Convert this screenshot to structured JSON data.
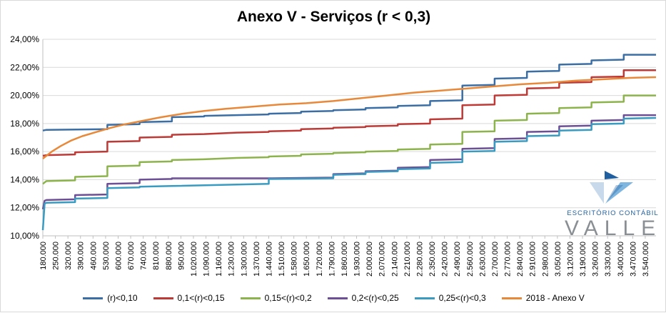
{
  "chart_data": {
    "type": "line",
    "title": "Anexo V - Serviços (r < 0,3)",
    "xlabel": "",
    "ylabel": "",
    "ylim": [
      10,
      24
    ],
    "y_ticks": [
      "10,00%",
      "12,00%",
      "14,00%",
      "16,00%",
      "18,00%",
      "20,00%",
      "22,00%",
      "24,00%"
    ],
    "y_tick_values": [
      10,
      12,
      14,
      16,
      18,
      20,
      22,
      24
    ],
    "x_ticks": [
      "180.000",
      "250.000",
      "320.000",
      "390.000",
      "460.000",
      "530.000",
      "600.000",
      "670.000",
      "740.000",
      "810.000",
      "880.000",
      "950.000",
      "1.020.000",
      "1.090.000",
      "1.160.000",
      "1.230.000",
      "1.300.000",
      "1.370.000",
      "1.440.000",
      "1.510.000",
      "1.580.000",
      "1.650.000",
      "1.720.000",
      "1.790.000",
      "1.860.000",
      "1.930.000",
      "2.000.000",
      "2.070.000",
      "2.140.000",
      "2.210.000",
      "2.280.000",
      "2.350.000",
      "2.420.000",
      "2.490.000",
      "2.560.000",
      "2.630.000",
      "2.700.000",
      "2.770.000",
      "2.840.000",
      "2.910.000",
      "2.980.000",
      "3.050.000",
      "3.120.000",
      "3.190.000",
      "3.260.000",
      "3.330.000",
      "3.400.000",
      "3.470.000",
      "3.540.000"
    ],
    "x_range": [
      180000,
      3600000
    ],
    "grid": "horizontal",
    "legend_position": "bottom",
    "series": [
      {
        "name": "(r)<0,10",
        "color": "#3a6ea5",
        "points": [
          [
            180000,
            17.5
          ],
          [
            200000,
            17.55
          ],
          [
            540000,
            17.6
          ],
          [
            540000,
            17.9
          ],
          [
            720000,
            17.95
          ],
          [
            720000,
            18.1
          ],
          [
            900000,
            18.15
          ],
          [
            900000,
            18.45
          ],
          [
            1080000,
            18.5
          ],
          [
            1080000,
            18.55
          ],
          [
            1260000,
            18.6
          ],
          [
            1440000,
            18.65
          ],
          [
            1440000,
            18.7
          ],
          [
            1620000,
            18.75
          ],
          [
            1620000,
            18.85
          ],
          [
            1800000,
            18.9
          ],
          [
            1800000,
            18.95
          ],
          [
            1980000,
            19.0
          ],
          [
            1980000,
            19.1
          ],
          [
            2160000,
            19.15
          ],
          [
            2160000,
            19.25
          ],
          [
            2340000,
            19.3
          ],
          [
            2340000,
            19.6
          ],
          [
            2520000,
            19.65
          ],
          [
            2520000,
            20.7
          ],
          [
            2700000,
            20.75
          ],
          [
            2700000,
            21.2
          ],
          [
            2880000,
            21.25
          ],
          [
            2880000,
            21.7
          ],
          [
            3060000,
            21.75
          ],
          [
            3060000,
            22.2
          ],
          [
            3240000,
            22.25
          ],
          [
            3240000,
            22.5
          ],
          [
            3420000,
            22.55
          ],
          [
            3420000,
            22.9
          ],
          [
            3600000,
            22.9
          ]
        ]
      },
      {
        "name": "0,1<(r)<0,15",
        "color": "#be3a36",
        "points": [
          [
            180000,
            15.7
          ],
          [
            200000,
            15.75
          ],
          [
            360000,
            15.8
          ],
          [
            360000,
            15.95
          ],
          [
            540000,
            16.0
          ],
          [
            540000,
            16.7
          ],
          [
            720000,
            16.75
          ],
          [
            720000,
            17.0
          ],
          [
            900000,
            17.05
          ],
          [
            900000,
            17.2
          ],
          [
            1080000,
            17.25
          ],
          [
            1260000,
            17.35
          ],
          [
            1440000,
            17.4
          ],
          [
            1440000,
            17.45
          ],
          [
            1620000,
            17.5
          ],
          [
            1620000,
            17.6
          ],
          [
            1800000,
            17.65
          ],
          [
            1800000,
            17.7
          ],
          [
            1980000,
            17.75
          ],
          [
            1980000,
            17.8
          ],
          [
            2160000,
            17.85
          ],
          [
            2160000,
            17.95
          ],
          [
            2340000,
            18.0
          ],
          [
            2340000,
            18.3
          ],
          [
            2520000,
            18.35
          ],
          [
            2520000,
            19.3
          ],
          [
            2700000,
            19.35
          ],
          [
            2700000,
            20.0
          ],
          [
            2880000,
            20.05
          ],
          [
            2880000,
            20.5
          ],
          [
            3060000,
            20.55
          ],
          [
            3060000,
            20.9
          ],
          [
            3240000,
            20.95
          ],
          [
            3240000,
            21.3
          ],
          [
            3420000,
            21.35
          ],
          [
            3420000,
            21.8
          ],
          [
            3600000,
            21.8
          ]
        ]
      },
      {
        "name": "0,15<(r)<0,2",
        "color": "#8db44c",
        "points": [
          [
            180000,
            13.7
          ],
          [
            200000,
            13.9
          ],
          [
            360000,
            13.95
          ],
          [
            360000,
            14.2
          ],
          [
            540000,
            14.25
          ],
          [
            540000,
            14.95
          ],
          [
            720000,
            15.0
          ],
          [
            720000,
            15.25
          ],
          [
            900000,
            15.3
          ],
          [
            900000,
            15.4
          ],
          [
            1080000,
            15.45
          ],
          [
            1260000,
            15.55
          ],
          [
            1440000,
            15.6
          ],
          [
            1440000,
            15.65
          ],
          [
            1620000,
            15.7
          ],
          [
            1620000,
            15.8
          ],
          [
            1800000,
            15.85
          ],
          [
            1800000,
            15.9
          ],
          [
            1980000,
            15.95
          ],
          [
            1980000,
            16.0
          ],
          [
            2160000,
            16.05
          ],
          [
            2160000,
            16.15
          ],
          [
            2340000,
            16.2
          ],
          [
            2340000,
            16.5
          ],
          [
            2520000,
            16.55
          ],
          [
            2520000,
            17.4
          ],
          [
            2700000,
            17.45
          ],
          [
            2700000,
            18.2
          ],
          [
            2880000,
            18.25
          ],
          [
            2880000,
            18.7
          ],
          [
            3060000,
            18.75
          ],
          [
            3060000,
            19.1
          ],
          [
            3240000,
            19.15
          ],
          [
            3240000,
            19.5
          ],
          [
            3420000,
            19.55
          ],
          [
            3420000,
            20.0
          ],
          [
            3600000,
            20.0
          ]
        ]
      },
      {
        "name": "0,2<(r)<0,25",
        "color": "#6d4f96",
        "points": [
          [
            180000,
            11.9
          ],
          [
            190000,
            12.5
          ],
          [
            200000,
            12.55
          ],
          [
            360000,
            12.6
          ],
          [
            360000,
            12.9
          ],
          [
            540000,
            12.95
          ],
          [
            540000,
            13.7
          ],
          [
            720000,
            13.75
          ],
          [
            720000,
            14.0
          ],
          [
            900000,
            14.05
          ],
          [
            900000,
            14.1
          ],
          [
            1440000,
            14.1
          ],
          [
            1440000,
            14.1
          ],
          [
            1800000,
            14.15
          ],
          [
            1800000,
            14.4
          ],
          [
            1980000,
            14.45
          ],
          [
            1980000,
            14.6
          ],
          [
            2160000,
            14.65
          ],
          [
            2160000,
            14.85
          ],
          [
            2340000,
            14.9
          ],
          [
            2340000,
            15.4
          ],
          [
            2520000,
            15.45
          ],
          [
            2520000,
            16.2
          ],
          [
            2700000,
            16.25
          ],
          [
            2700000,
            16.9
          ],
          [
            2880000,
            16.95
          ],
          [
            2880000,
            17.4
          ],
          [
            3060000,
            17.45
          ],
          [
            3060000,
            17.8
          ],
          [
            3240000,
            17.85
          ],
          [
            3240000,
            18.2
          ],
          [
            3420000,
            18.25
          ],
          [
            3420000,
            18.6
          ],
          [
            3600000,
            18.6
          ]
        ]
      },
      {
        "name": "0,25<(r)<0,3",
        "color": "#3a9bc1",
        "points": [
          [
            180000,
            10.4
          ],
          [
            190000,
            12.3
          ],
          [
            200000,
            12.35
          ],
          [
            360000,
            12.4
          ],
          [
            360000,
            12.65
          ],
          [
            540000,
            12.7
          ],
          [
            540000,
            13.4
          ],
          [
            720000,
            13.45
          ],
          [
            720000,
            13.5
          ],
          [
            900000,
            13.55
          ],
          [
            1440000,
            13.7
          ],
          [
            1440000,
            14.05
          ],
          [
            1800000,
            14.1
          ],
          [
            1800000,
            14.35
          ],
          [
            1980000,
            14.4
          ],
          [
            1980000,
            14.55
          ],
          [
            2160000,
            14.6
          ],
          [
            2160000,
            14.75
          ],
          [
            2340000,
            14.8
          ],
          [
            2340000,
            15.2
          ],
          [
            2520000,
            15.25
          ],
          [
            2520000,
            16.0
          ],
          [
            2700000,
            16.05
          ],
          [
            2700000,
            16.7
          ],
          [
            2880000,
            16.75
          ],
          [
            2880000,
            17.1
          ],
          [
            3060000,
            17.15
          ],
          [
            3060000,
            17.5
          ],
          [
            3240000,
            17.55
          ],
          [
            3240000,
            17.95
          ],
          [
            3420000,
            18.0
          ],
          [
            3420000,
            18.35
          ],
          [
            3600000,
            18.4
          ]
        ]
      },
      {
        "name": "2018 - Anexo V",
        "color": "#e8893a",
        "points": [
          [
            180000,
            15.5
          ],
          [
            200000,
            15.7
          ],
          [
            230000,
            16.0
          ],
          [
            280000,
            16.4
          ],
          [
            340000,
            16.8
          ],
          [
            400000,
            17.1
          ],
          [
            480000,
            17.4
          ],
          [
            560000,
            17.7
          ],
          [
            640000,
            17.95
          ],
          [
            740000,
            18.2
          ],
          [
            840000,
            18.45
          ],
          [
            960000,
            18.7
          ],
          [
            1080000,
            18.9
          ],
          [
            1200000,
            19.05
          ],
          [
            1350000,
            19.2
          ],
          [
            1500000,
            19.35
          ],
          [
            1650000,
            19.45
          ],
          [
            1800000,
            19.6
          ],
          [
            1950000,
            19.8
          ],
          [
            2100000,
            20.0
          ],
          [
            2250000,
            20.2
          ],
          [
            2400000,
            20.35
          ],
          [
            2550000,
            20.5
          ],
          [
            2700000,
            20.65
          ],
          [
            2850000,
            20.8
          ],
          [
            3000000,
            20.9
          ],
          [
            3150000,
            21.05
          ],
          [
            3300000,
            21.15
          ],
          [
            3450000,
            21.25
          ],
          [
            3600000,
            21.3
          ]
        ]
      }
    ]
  },
  "logo": {
    "line1": "ESCRITÓRIO CONTÁBIL",
    "line2": "VALLE",
    "color_dark": "#1f5f9f",
    "color_light": "#7fb6e0",
    "color_gray": "#8a8f94"
  }
}
